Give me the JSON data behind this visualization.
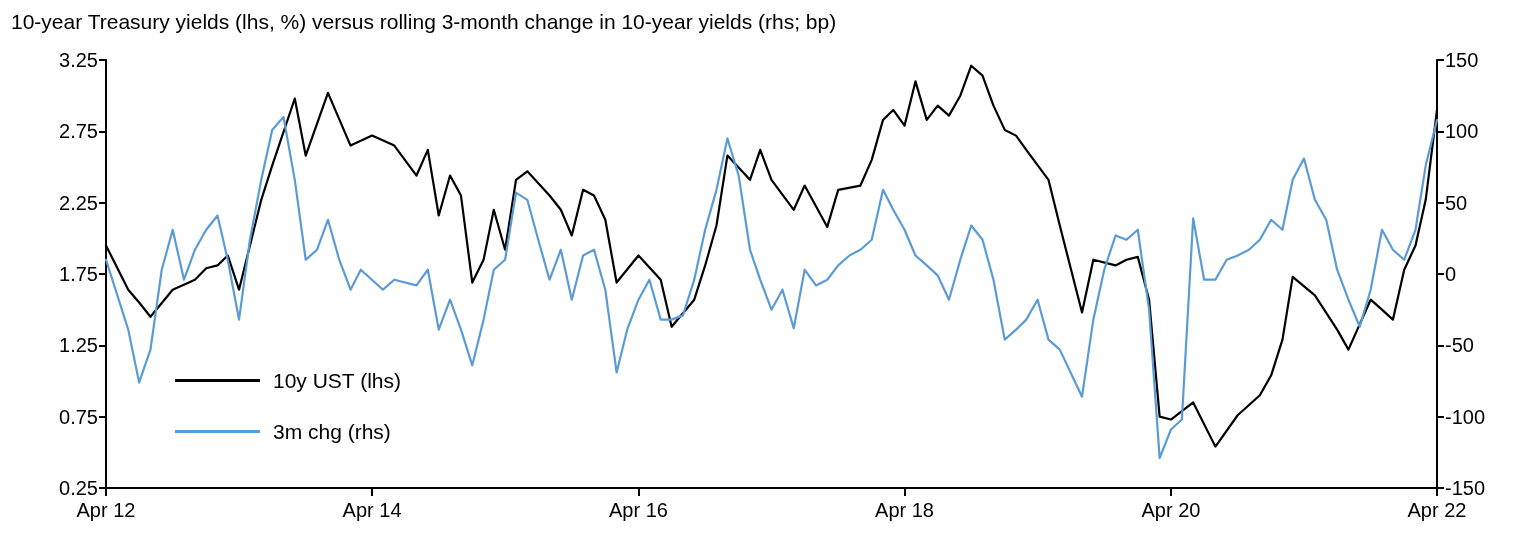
{
  "chart_data": {
    "type": "line",
    "title": "10-year Treasury yields (lhs, %) versus rolling 3-month change in 10-year yields (rhs; bp)",
    "xlim": [
      "2012-04",
      "2022-04"
    ],
    "xticks": [
      {
        "value": "2012-04",
        "label": "Apr 12"
      },
      {
        "value": "2014-04",
        "label": "Apr 14"
      },
      {
        "value": "2016-04",
        "label": "Apr 16"
      },
      {
        "value": "2018-04",
        "label": "Apr 18"
      },
      {
        "value": "2020-04",
        "label": "Apr 20"
      },
      {
        "value": "2022-04",
        "label": "Apr 22"
      }
    ],
    "ylim": [
      0.25,
      3.25
    ],
    "yticks": [
      0.25,
      0.75,
      1.25,
      1.75,
      2.25,
      2.75,
      3.25
    ],
    "y2lim": [
      -150,
      150
    ],
    "y2ticks": [
      -150,
      -100,
      -50,
      0,
      50,
      100,
      150
    ],
    "legend": "bottom left",
    "marker": "none",
    "line_style": "solid",
    "series": [
      {
        "name": "10y UST (lhs)",
        "color": "#000000",
        "x": [
          "2012-04",
          "2012-06",
          "2012-07",
          "2012-08",
          "2012-10",
          "2012-12",
          "2013-01",
          "2013-02",
          "2013-03",
          "2013-04",
          "2013-06",
          "2013-07",
          "2013-09",
          "2013-10",
          "2013-12",
          "2014-02",
          "2014-04",
          "2014-06",
          "2014-08",
          "2014-09",
          "2014-10",
          "2014-11",
          "2014-12",
          "2015-01",
          "2015-02",
          "2015-03",
          "2015-04",
          "2015-05",
          "2015-06",
          "2015-08",
          "2015-09",
          "2015-10",
          "2015-11",
          "2015-12",
          "2016-01",
          "2016-02",
          "2016-04",
          "2016-06",
          "2016-07",
          "2016-09",
          "2016-10",
          "2016-11",
          "2016-12",
          "2017-02",
          "2017-03",
          "2017-04",
          "2017-06",
          "2017-07",
          "2017-09",
          "2017-10",
          "2017-12",
          "2018-01",
          "2018-02",
          "2018-03",
          "2018-04",
          "2018-05",
          "2018-06",
          "2018-07",
          "2018-08",
          "2018-09",
          "2018-10",
          "2018-11",
          "2018-12",
          "2019-01",
          "2019-02",
          "2019-03",
          "2019-05",
          "2019-06",
          "2019-08",
          "2019-09",
          "2019-11",
          "2019-12",
          "2020-01",
          "2020-02",
          "2020-03",
          "2020-04",
          "2020-06",
          "2020-08",
          "2020-10",
          "2020-12",
          "2021-01",
          "2021-02",
          "2021-03",
          "2021-05",
          "2021-07",
          "2021-08",
          "2021-10",
          "2021-11",
          "2021-12",
          "2022-01",
          "2022-02",
          "2022-03",
          "2022-04"
        ],
        "values": [
          1.95,
          1.64,
          1.55,
          1.45,
          1.64,
          1.71,
          1.79,
          1.81,
          1.88,
          1.64,
          2.27,
          2.51,
          2.98,
          2.58,
          3.02,
          2.65,
          2.72,
          2.65,
          2.44,
          2.62,
          2.16,
          2.44,
          2.3,
          1.69,
          1.85,
          2.2,
          1.92,
          2.41,
          2.47,
          2.3,
          2.2,
          2.02,
          2.34,
          2.3,
          2.13,
          1.69,
          1.88,
          1.71,
          1.38,
          1.57,
          1.81,
          2.09,
          2.58,
          2.41,
          2.62,
          2.41,
          2.2,
          2.37,
          2.08,
          2.34,
          2.37,
          2.55,
          2.83,
          2.9,
          2.79,
          3.1,
          2.83,
          2.93,
          2.86,
          3.0,
          3.21,
          3.14,
          2.93,
          2.76,
          2.72,
          2.62,
          2.41,
          2.09,
          1.48,
          1.85,
          1.81,
          1.85,
          1.87,
          1.57,
          0.75,
          0.73,
          0.85,
          0.54,
          0.76,
          0.9,
          1.04,
          1.29,
          1.73,
          1.6,
          1.36,
          1.22,
          1.57,
          1.5,
          1.43,
          1.78,
          1.95,
          2.27,
          2.9
        ]
      },
      {
        "name": "3m chg (rhs)",
        "color": "#5b9bd5",
        "axis": "y2",
        "x": [
          "2012-04",
          "2012-06",
          "2012-07",
          "2012-08",
          "2012-09",
          "2012-10",
          "2012-11",
          "2012-12",
          "2013-01",
          "2013-02",
          "2013-03",
          "2013-04",
          "2013-05",
          "2013-06",
          "2013-07",
          "2013-08",
          "2013-09",
          "2013-10",
          "2013-11",
          "2013-12",
          "2014-01",
          "2014-02",
          "2014-03",
          "2014-05",
          "2014-06",
          "2014-08",
          "2014-09",
          "2014-10",
          "2014-11",
          "2014-12",
          "2015-01",
          "2015-02",
          "2015-03",
          "2015-04",
          "2015-05",
          "2015-06",
          "2015-07",
          "2015-08",
          "2015-09",
          "2015-10",
          "2015-11",
          "2015-12",
          "2016-01",
          "2016-02",
          "2016-03",
          "2016-04",
          "2016-05",
          "2016-06",
          "2016-07",
          "2016-08",
          "2016-09",
          "2016-10",
          "2016-11",
          "2016-12",
          "2017-01",
          "2017-02",
          "2017-03",
          "2017-04",
          "2017-05",
          "2017-06",
          "2017-07",
          "2017-08",
          "2017-09",
          "2017-10",
          "2017-11",
          "2017-12",
          "2018-01",
          "2018-02",
          "2018-03",
          "2018-04",
          "2018-05",
          "2018-06",
          "2018-07",
          "2018-08",
          "2018-09",
          "2018-10",
          "2018-11",
          "2018-12",
          "2019-01",
          "2019-02",
          "2019-03",
          "2019-04",
          "2019-05",
          "2019-06",
          "2019-08",
          "2019-09",
          "2019-10",
          "2019-11",
          "2019-12",
          "2020-01",
          "2020-02",
          "2020-03",
          "2020-04",
          "2020-05",
          "2020-06",
          "2020-07",
          "2020-08",
          "2020-09",
          "2020-10",
          "2020-11",
          "2020-12",
          "2021-01",
          "2021-02",
          "2021-03",
          "2021-04",
          "2021-05",
          "2021-06",
          "2021-07",
          "2021-08",
          "2021-09",
          "2021-10",
          "2021-11",
          "2021-12",
          "2022-01",
          "2022-02",
          "2022-03",
          "2022-04"
        ],
        "values": [
          10,
          -39,
          -76,
          -53,
          3,
          31,
          -4,
          17,
          31,
          41,
          10,
          -32,
          24,
          66,
          101,
          110,
          66,
          10,
          17,
          38,
          10,
          -11,
          3,
          -11,
          -4,
          -8,
          3,
          -39,
          -18,
          -39,
          -64,
          -32,
          3,
          10,
          57,
          52,
          24,
          -4,
          17,
          -18,
          13,
          17,
          -11,
          -69,
          -39,
          -18,
          -4,
          -32,
          -32,
          -29,
          -4,
          31,
          59,
          95,
          69,
          17,
          -4,
          -25,
          -11,
          -38,
          3,
          -8,
          -4,
          6,
          13,
          17,
          24,
          59,
          45,
          31,
          13,
          6,
          -1,
          -18,
          10,
          34,
          24,
          -4,
          -46,
          -39,
          -32,
          -18,
          -46,
          -53,
          -86,
          -32,
          3,
          27,
          24,
          31,
          -25,
          -129,
          -109,
          -102,
          39,
          -4,
          -4,
          10,
          13,
          17,
          24,
          38,
          31,
          66,
          81,
          52,
          38,
          3,
          -18,
          -37,
          -11,
          31,
          17,
          10,
          31,
          76,
          108
        ]
      }
    ]
  }
}
